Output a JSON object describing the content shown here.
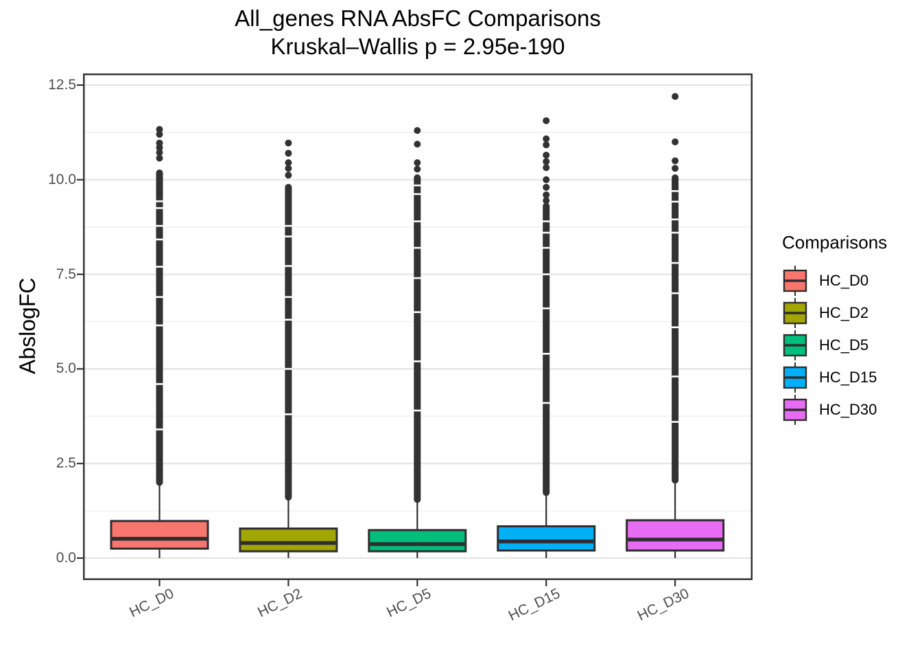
{
  "title": {
    "line1": "All_genes RNA AbsFC Comparisons",
    "line2": "Kruskal–Wallis p = 2.95e-190"
  },
  "axes": {
    "y_label": "AbslogFC",
    "y_tick_labels": [
      "0.0",
      "2.5",
      "5.0",
      "7.5",
      "10.0",
      "12.5"
    ],
    "y_tick_values": [
      0,
      2.5,
      5,
      7.5,
      10,
      12.5
    ],
    "y_minor_values": [
      1.25,
      3.75,
      6.25,
      8.75,
      11.25
    ],
    "x_tick_labels": [
      "HC_D0",
      "HC_D2",
      "HC_D5",
      "HC_D15",
      "HC_D30"
    ]
  },
  "legend": {
    "title": "Comparisons"
  },
  "style_colors": {
    "outlier": "#323232",
    "box_border": "#2e2e2e",
    "grid_major": "#e2e2e2",
    "grid_minor": "#f0f0f0",
    "panel_border": "#333333",
    "tick_label": "#4d4d4d"
  },
  "chart_data": {
    "type": "boxplot",
    "title": "All_genes RNA AbsFC Comparisons",
    "subtitle": "Kruskal–Wallis p = 2.95e-190",
    "kruskal_wallis_p": "2.95e-190",
    "xlabel": "",
    "ylabel": "AbslogFC",
    "ylim": [
      0,
      12.5
    ],
    "grid": true,
    "legend_position": "right",
    "legend_title": "Comparisons",
    "categories": [
      "HC_D0",
      "HC_D2",
      "HC_D5",
      "HC_D15",
      "HC_D30"
    ],
    "groups": [
      {
        "name": "HC_D0",
        "color": "#F8766D",
        "min": 0,
        "q1": 0.25,
        "median": 0.51,
        "q3": 0.98,
        "whisker_low": 0,
        "whisker_high": 2.0,
        "max": 11.33,
        "outlier_dense_range": [
          2.0,
          10.18
        ],
        "outlier_gaps": [
          9.43,
          9.25,
          8.78,
          8.42,
          7.7,
          6.9,
          6.15,
          4.6,
          3.4
        ],
        "outlier_dots": [
          10.57,
          10.72,
          10.85,
          10.97,
          11.2,
          11.33
        ]
      },
      {
        "name": "HC_D2",
        "color": "#A3A500",
        "min": 0,
        "q1": 0.18,
        "median": 0.4,
        "q3": 0.78,
        "whisker_low": 0,
        "whisker_high": 1.61,
        "max": 10.97,
        "outlier_dense_range": [
          1.61,
          9.8
        ],
        "outlier_gaps": [
          8.78,
          8.5,
          7.72,
          6.9,
          6.3,
          5.0,
          3.8
        ],
        "outlier_dots": [
          10.12,
          10.3,
          10.45,
          10.7,
          10.97
        ]
      },
      {
        "name": "HC_D5",
        "color": "#00BF7D",
        "min": 0,
        "q1": 0.18,
        "median": 0.37,
        "q3": 0.74,
        "whisker_low": 0,
        "whisker_high": 1.55,
        "max": 11.3,
        "outlier_dense_range": [
          1.55,
          10.05
        ],
        "outlier_gaps": [
          9.85,
          9.62,
          8.9,
          8.2,
          7.4,
          6.5,
          5.2,
          3.9
        ],
        "outlier_dots": [
          10.28,
          10.45,
          10.94,
          11.3
        ]
      },
      {
        "name": "HC_D15",
        "color": "#00B0F6",
        "min": 0,
        "q1": 0.2,
        "median": 0.44,
        "q3": 0.84,
        "whisker_low": 0,
        "whisker_high": 1.73,
        "max": 11.56,
        "outlier_dense_range": [
          1.73,
          9.3
        ],
        "outlier_gaps": [
          8.9,
          8.6,
          8.2,
          7.5,
          6.6,
          5.4,
          4.1
        ],
        "outlier_dots": [
          9.45,
          9.6,
          9.8,
          10.0,
          10.32,
          10.48,
          10.65,
          10.92,
          11.08,
          11.56
        ]
      },
      {
        "name": "HC_D30",
        "color": "#E76BF3",
        "min": 0,
        "q1": 0.2,
        "median": 0.49,
        "q3": 1.0,
        "whisker_low": 0,
        "whisker_high": 2.06,
        "max": 12.2,
        "outlier_dense_range": [
          2.06,
          10.05
        ],
        "outlier_gaps": [
          9.7,
          9.42,
          8.95,
          8.6,
          7.8,
          7.0,
          6.1,
          4.8,
          3.6
        ],
        "outlier_dots": [
          10.3,
          10.5,
          11.0,
          12.2
        ]
      }
    ]
  }
}
